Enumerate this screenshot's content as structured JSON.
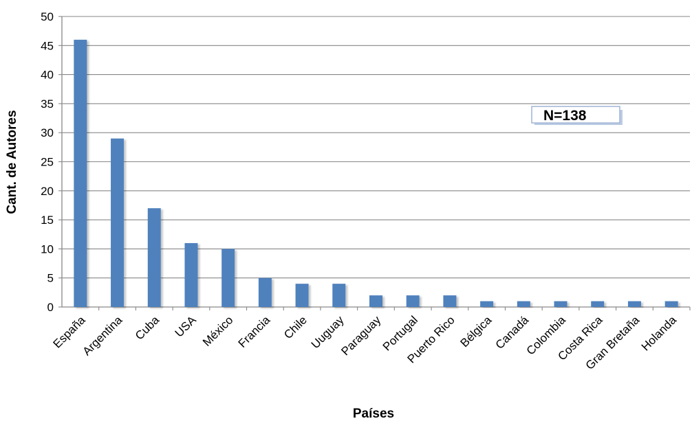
{
  "chart_data": {
    "type": "bar",
    "title": "",
    "xlabel": "Países",
    "ylabel": "Cant. de Autores",
    "ylim": [
      0,
      50
    ],
    "yticks": [
      0,
      5,
      10,
      15,
      20,
      25,
      30,
      35,
      40,
      45,
      50
    ],
    "grid": true,
    "legend": "none",
    "bar_color": "#4f81bd",
    "categories": [
      "España",
      "Argentina",
      "Cuba",
      "USA",
      "México",
      "Francia",
      "Chile",
      "Uuguay",
      "Paraguay",
      "Portugal",
      "Puerto Rico",
      "Bélgica",
      "Canadá",
      "Colombia",
      "Costa Rica",
      "Gran Bretaña",
      "Holanda"
    ],
    "values": [
      46,
      29,
      17,
      11,
      10,
      5,
      4,
      4,
      2,
      2,
      2,
      1,
      1,
      1,
      1,
      1,
      1
    ],
    "annotation": "N=138"
  }
}
